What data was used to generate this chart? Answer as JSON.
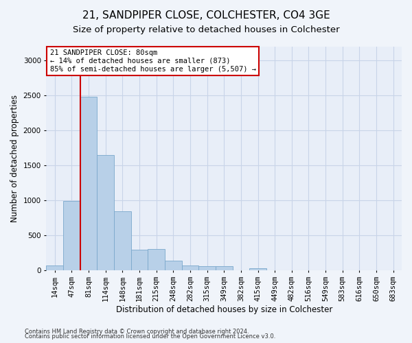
{
  "title1": "21, SANDPIPER CLOSE, COLCHESTER, CO4 3GE",
  "title2": "Size of property relative to detached houses in Colchester",
  "xlabel": "Distribution of detached houses by size in Colchester",
  "ylabel": "Number of detached properties",
  "footnote1": "Contains HM Land Registry data © Crown copyright and database right 2024.",
  "footnote2": "Contains public sector information licensed under the Open Government Licence v3.0.",
  "bin_labels": [
    "14sqm",
    "47sqm",
    "81sqm",
    "114sqm",
    "148sqm",
    "181sqm",
    "215sqm",
    "248sqm",
    "282sqm",
    "315sqm",
    "349sqm",
    "382sqm",
    "415sqm",
    "449sqm",
    "482sqm",
    "516sqm",
    "549sqm",
    "583sqm",
    "616sqm",
    "650sqm",
    "683sqm"
  ],
  "bar_values": [
    70,
    990,
    2480,
    1650,
    840,
    290,
    300,
    135,
    70,
    60,
    55,
    0,
    30,
    0,
    0,
    0,
    0,
    0,
    0,
    0,
    0
  ],
  "bar_color": "#b8d0e8",
  "bar_edge_color": "#7aa8cc",
  "vline_x_index": 2,
  "vline_color": "#cc0000",
  "annotation_line1": "21 SANDPIPER CLOSE: 80sqm",
  "annotation_line2": "← 14% of detached houses are smaller (873)",
  "annotation_line3": "85% of semi-detached houses are larger (5,507) →",
  "annotation_box_color": "#ffffff",
  "annotation_box_edge": "#cc0000",
  "ylim": [
    0,
    3200
  ],
  "yticks": [
    0,
    500,
    1000,
    1500,
    2000,
    2500,
    3000
  ],
  "bg_color": "#f0f4fa",
  "plot_bg_color": "#e8eef8",
  "grid_color": "#c8d4e8",
  "title1_fontsize": 11,
  "title2_fontsize": 9.5,
  "axis_label_fontsize": 8.5,
  "tick_fontsize": 7.5,
  "footnote_fontsize": 6
}
